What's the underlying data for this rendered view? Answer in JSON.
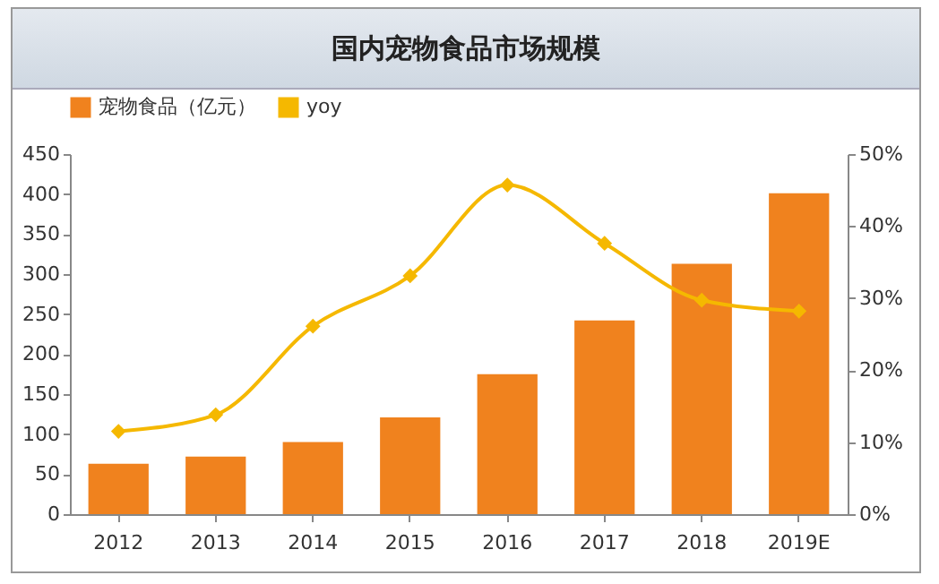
{
  "chart_data": {
    "type": "bar",
    "title": "国内宠物食品市场规模",
    "categories": [
      "2012",
      "2013",
      "2014",
      "2015",
      "2016",
      "2017",
      "2018",
      "2019E"
    ],
    "series": [
      {
        "name": "宠物食品（亿元）",
        "color": "#f0821e",
        "values": [
          63,
          72,
          90,
          121,
          175,
          242,
          313,
          401
        ]
      },
      {
        "name": "yoy",
        "type": "line",
        "axis": "y2",
        "color": "#f5b800",
        "marker": "diamond",
        "values": [
          11.5,
          13.8,
          26.1,
          33.1,
          45.7,
          37.6,
          29.7,
          28.2
        ]
      }
    ],
    "ylim": [
      0,
      450
    ],
    "yticks": [
      0,
      50,
      100,
      150,
      200,
      250,
      300,
      350,
      400,
      450
    ],
    "y2lim": [
      0,
      50
    ],
    "y2ticks": [
      {
        "value": 0,
        "label": "0%"
      },
      {
        "value": 10,
        "label": "10%"
      },
      {
        "value": 20,
        "label": "20%"
      },
      {
        "value": 30,
        "label": "30%"
      },
      {
        "value": 40,
        "label": "40%"
      },
      {
        "value": 50,
        "label": "50%"
      }
    ],
    "grid": false,
    "legend": "top"
  }
}
